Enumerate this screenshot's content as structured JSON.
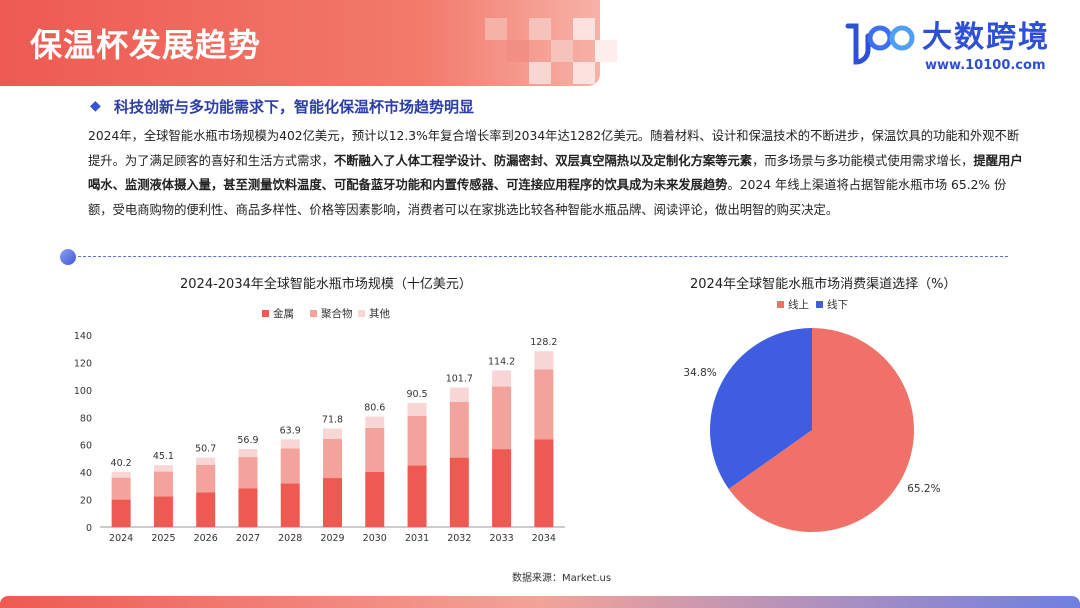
{
  "header": {
    "title": "保温杯发展趋势"
  },
  "logo": {
    "text": "大数跨境",
    "url": "www.10100.com",
    "mark": "100"
  },
  "subhead": "科技创新与多功能需求下，智能化保温杯市场趋势明显",
  "paragraph": {
    "p1": "2024年，全球智能水瓶市场规模为402亿美元，预计以12.3%年复合增长率到2034年达1282亿美元。随着材料、设计和保温技术的不断进步，保温饮具的功能和外观不断提升。为了满足顾客的喜好和生活方式需求，",
    "b1": "不断融入了人体工程学设计、防漏密封、双层真空隔热以及定制化方案等元素",
    "p2": "，而多场景与多功能模式使用需求增长，",
    "b2": "提醒用户喝水、监测液体摄入量，甚至测量饮料温度、可配备蓝牙功能和内置传感器、可连接应用程序的饮具成为未来发展趋势",
    "p3": "。2024 年线上渠道将占据智能水瓶市场 65.2% 份额，受电商购物的便利性、商品多样性、价格等因素影响，消费者可以在家挑选比较各种智能水瓶品牌、阅读评论，做出明智的购买决定。"
  },
  "source": "数据来源：Market.us",
  "colors": {
    "metal": "#ee5a52",
    "polymer": "#f3a39b",
    "other": "#f8d6d6",
    "online": "#f07168",
    "offline": "#3e5de0"
  },
  "chart_data": [
    {
      "type": "bar",
      "title": "2024-2034年全球智能水瓶市场规模（十亿美元）",
      "categories": [
        "2024",
        "2025",
        "2026",
        "2027",
        "2028",
        "2029",
        "2030",
        "2031",
        "2032",
        "2033",
        "2034"
      ],
      "series": [
        {
          "name": "金属",
          "values": [
            20.0,
            22.4,
            25.2,
            28.3,
            31.8,
            35.7,
            40.1,
            45.0,
            50.6,
            56.8,
            63.8
          ]
        },
        {
          "name": "聚合物",
          "values": [
            16.0,
            18.0,
            20.2,
            22.7,
            25.5,
            28.6,
            32.1,
            36.1,
            40.6,
            45.6,
            51.2
          ]
        },
        {
          "name": "其他",
          "values": [
            4.2,
            4.7,
            5.3,
            5.9,
            6.6,
            7.5,
            8.4,
            9.4,
            10.5,
            11.8,
            13.2
          ]
        }
      ],
      "totals": [
        "40.2",
        "45.1",
        "50.7",
        "56.9",
        "63.9",
        "71.8",
        "80.6",
        "90.5",
        "101.7",
        "114.2",
        "128.2"
      ],
      "yticks": [
        "0",
        "20",
        "40",
        "60",
        "80",
        "100",
        "120",
        "140"
      ],
      "ylim": [
        0,
        140
      ],
      "legend": "top-center",
      "grid": false
    },
    {
      "type": "pie",
      "title": "2024年全球智能水瓶市场消费渠道选择（%）",
      "labels": [
        "线上",
        "线下"
      ],
      "values": [
        65.2,
        34.8
      ],
      "value_labels": [
        "65.2%",
        "34.8%"
      ],
      "legend": "top-center"
    }
  ]
}
